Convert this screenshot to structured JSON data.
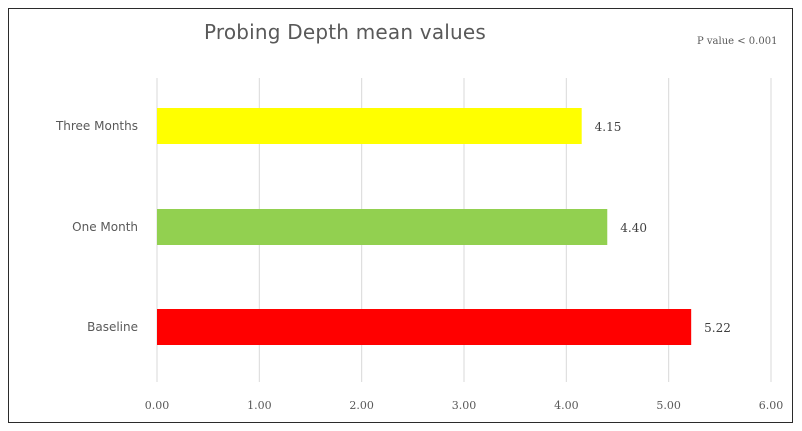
{
  "chart_data": {
    "type": "bar",
    "orientation": "horizontal",
    "title": "Probing Depth mean values",
    "annotation": "P value < 0.001",
    "categories": [
      "Three Months",
      "One Month",
      "Baseline"
    ],
    "values": [
      4.15,
      4.4,
      5.22
    ],
    "data_labels": [
      "4.15",
      "4.40",
      "5.22"
    ],
    "bar_colors": [
      "#ffff00",
      "#92d050",
      "#ff0000"
    ],
    "xlim": [
      0,
      6
    ],
    "x_ticks": [
      "0.00",
      "1.00",
      "2.00",
      "3.00",
      "4.00",
      "5.00",
      "6.00"
    ],
    "xlabel": "",
    "ylabel": "",
    "grid": "vertical",
    "gridline_color": "#d9d9d9",
    "legend": "none"
  }
}
